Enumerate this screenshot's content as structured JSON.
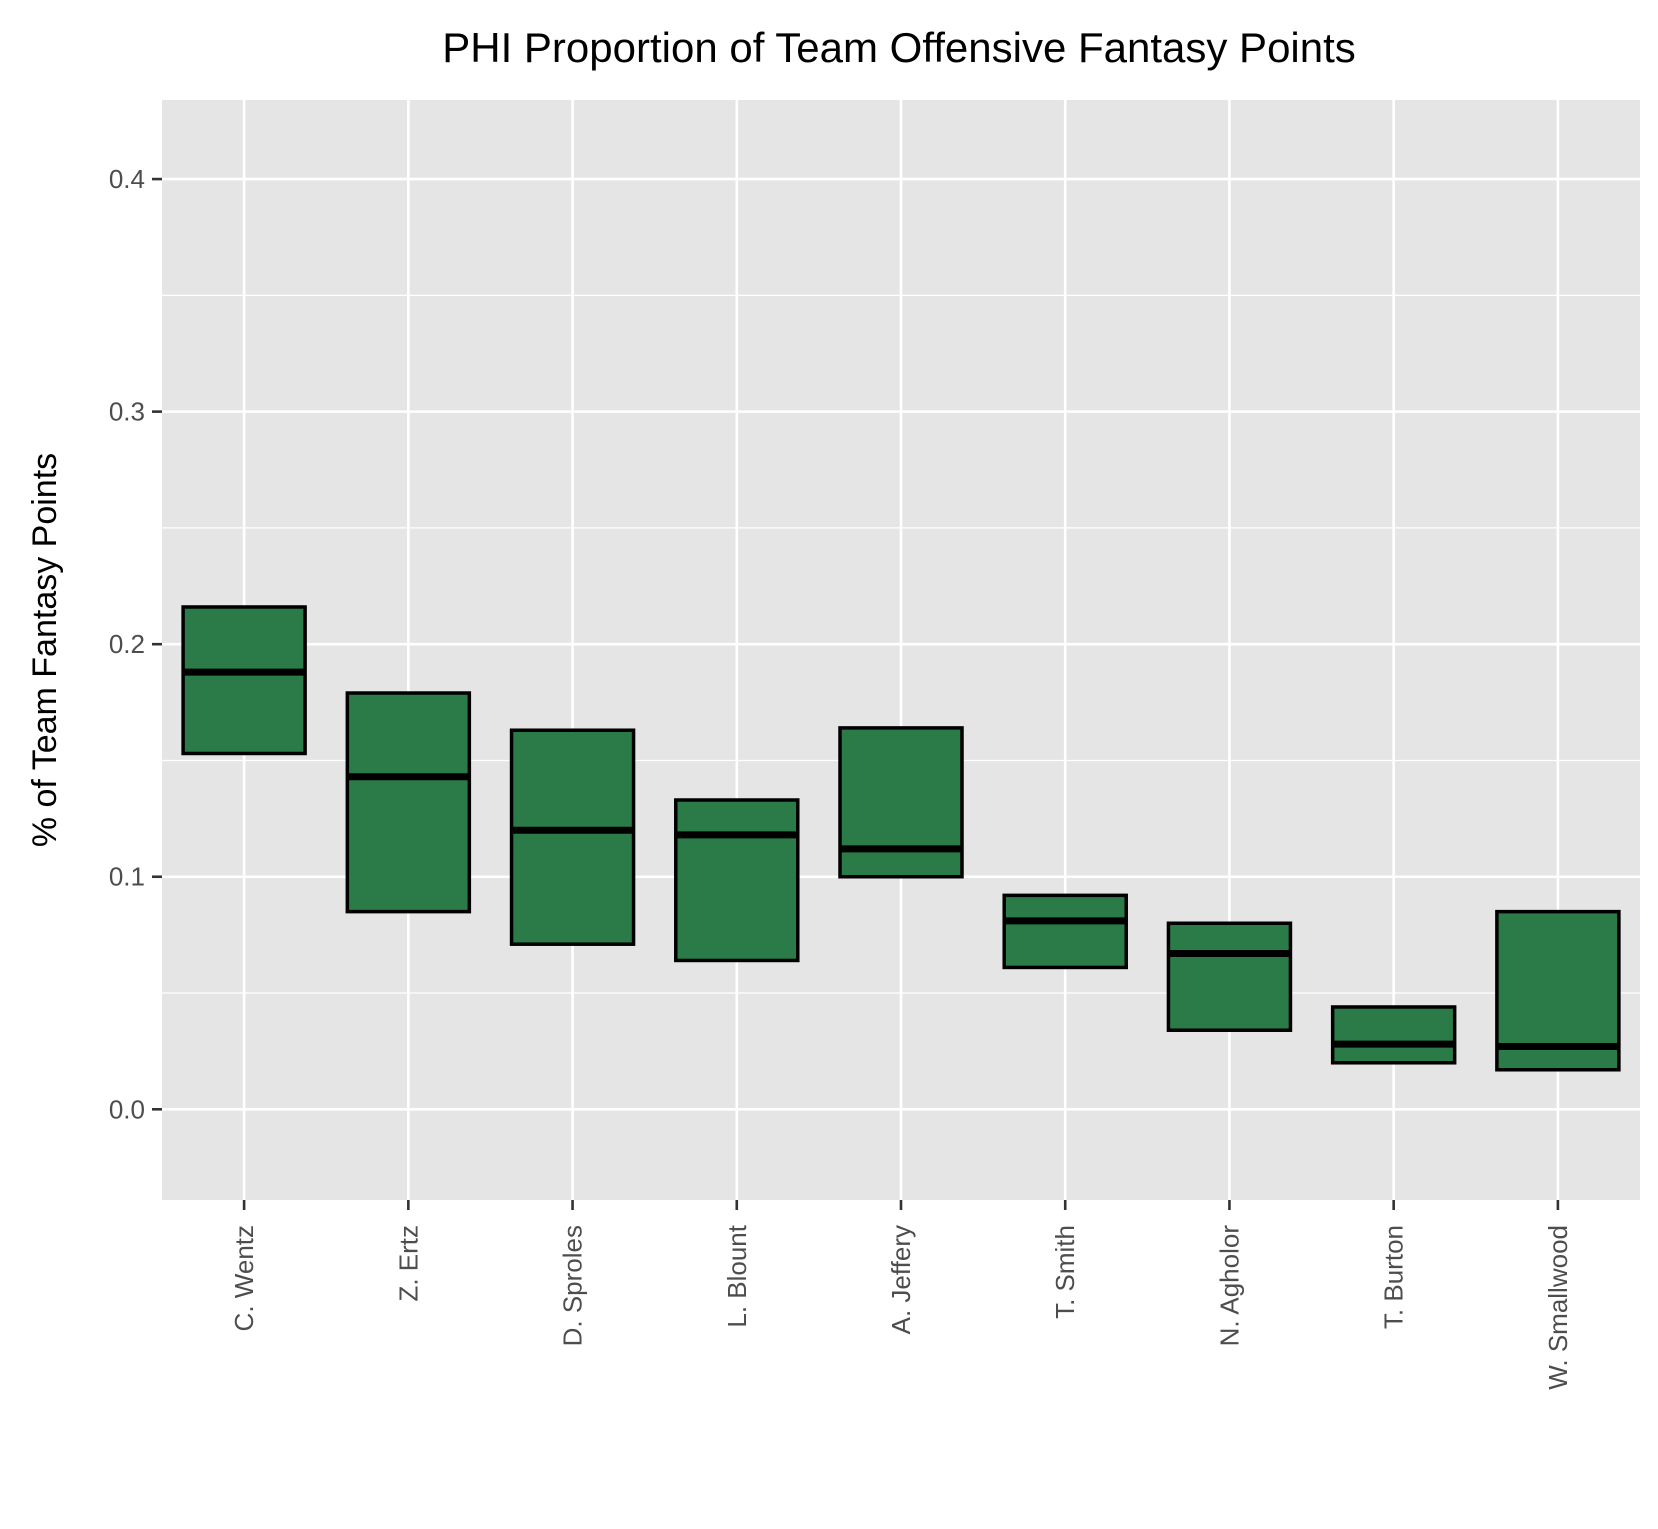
{
  "chart_data": {
    "type": "box",
    "title": "PHI Proportion of Team Offensive Fantasy Points",
    "xlabel": "",
    "ylabel": "% of Team Fantasy Points",
    "categories": [
      "C. Wentz",
      "Z. Ertz",
      "D. Sproles",
      "L. Blount",
      "A. Jeffery",
      "T. Smith",
      "N. Agholor",
      "T. Burton",
      "W. Smallwood"
    ],
    "boxes": [
      {
        "name": "C. Wentz",
        "lower": 0.153,
        "median": 0.188,
        "upper": 0.216
      },
      {
        "name": "Z. Ertz",
        "lower": 0.085,
        "median": 0.143,
        "upper": 0.179
      },
      {
        "name": "D. Sproles",
        "lower": 0.071,
        "median": 0.12,
        "upper": 0.163
      },
      {
        "name": "L. Blount",
        "lower": 0.064,
        "median": 0.118,
        "upper": 0.133
      },
      {
        "name": "A. Jeffery",
        "lower": 0.1,
        "median": 0.112,
        "upper": 0.164
      },
      {
        "name": "T. Smith",
        "lower": 0.061,
        "median": 0.081,
        "upper": 0.092
      },
      {
        "name": "N. Agholor",
        "lower": 0.034,
        "median": 0.067,
        "upper": 0.08
      },
      {
        "name": "T. Burton",
        "lower": 0.02,
        "median": 0.028,
        "upper": 0.044
      },
      {
        "name": "W. Smallwood",
        "lower": 0.017,
        "median": 0.027,
        "upper": 0.085
      }
    ],
    "yticks": [
      "0.0",
      "0.1",
      "0.2",
      "0.3",
      "0.4"
    ],
    "ylim": [
      -0.039,
      0.434
    ],
    "grid": true,
    "legend": "none",
    "colors": {
      "box_fill": "#2a7b47",
      "box_stroke": "#000000",
      "panel_bg": "#e5e5e5",
      "grid": "#ffffff",
      "tick_text": "#4d4d4d"
    }
  }
}
